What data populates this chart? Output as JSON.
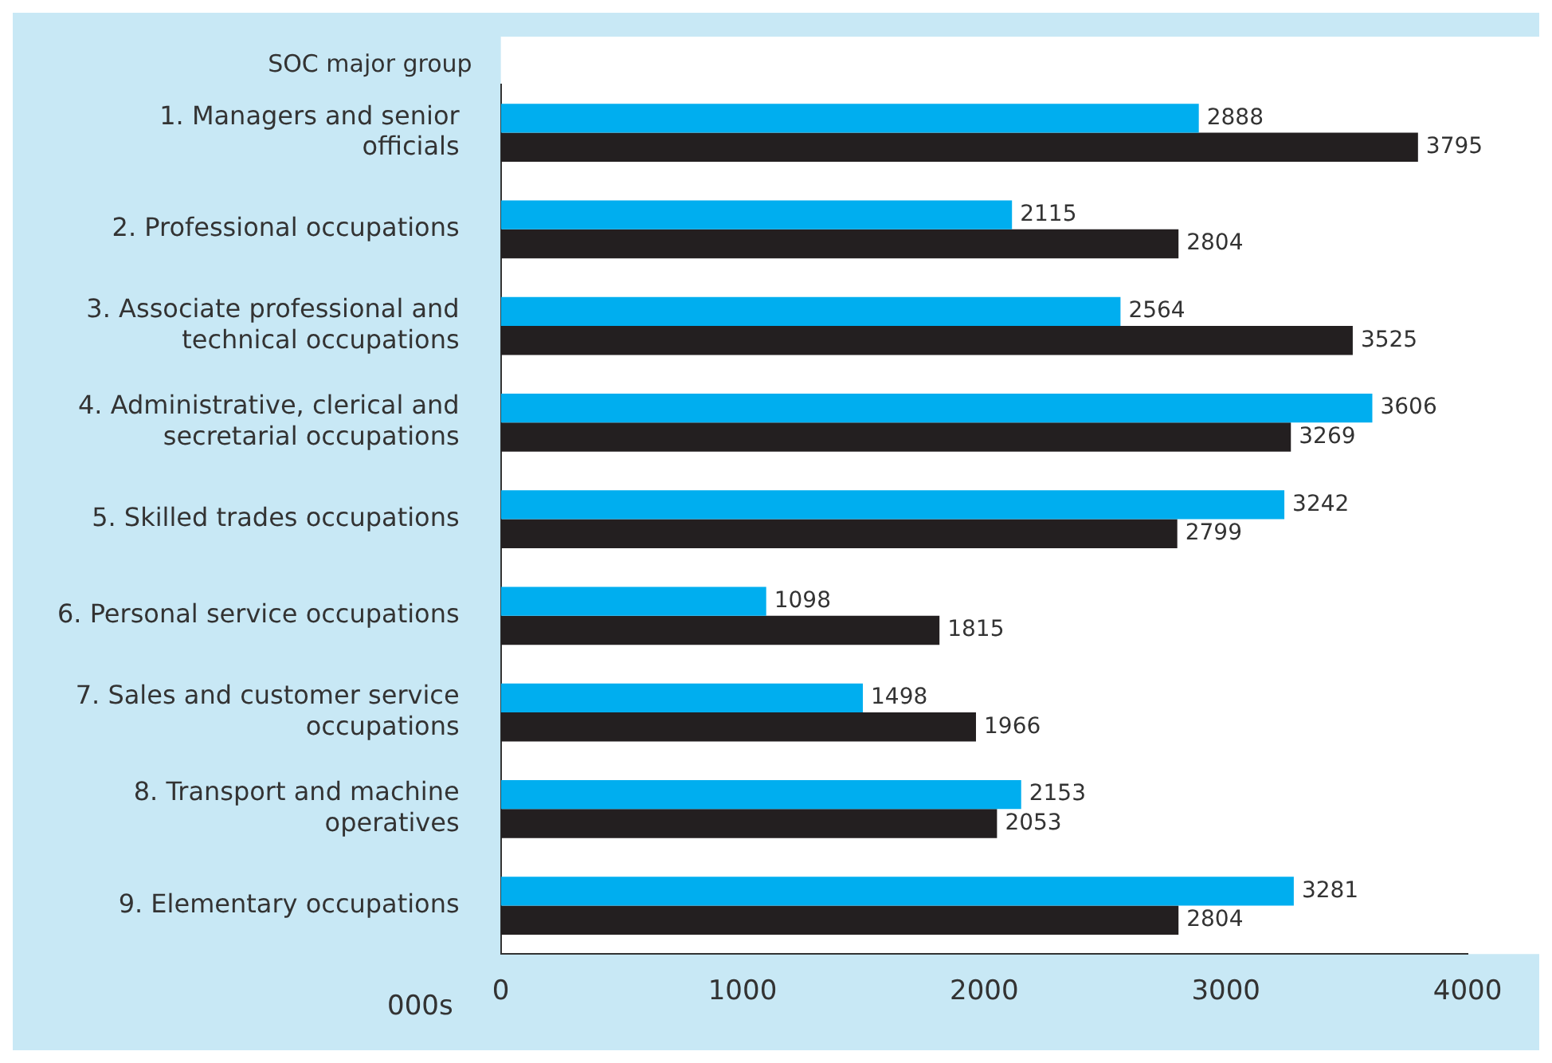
{
  "chart_data": {
    "type": "bar",
    "orientation": "horizontal",
    "ylabel": "SOC major group",
    "xlabel": "000s",
    "categories": [
      "1. Managers and senior officials",
      "2. Professional occupations",
      "3. Associate professional and technical occupations",
      "4. Administrative, clerical and secretarial occupations",
      "5. Skilled trades occupations",
      "6. Personal service occupations",
      "7. Sales and customer service occupations",
      "8. Transport and machine operatives",
      "9. Elementary occupations"
    ],
    "series": [
      {
        "color": "#00aeef",
        "values": [
          2888,
          2115,
          2564,
          3606,
          3242,
          1098,
          1498,
          2153,
          3281
        ]
      },
      {
        "color": "#231f20",
        "values": [
          3795,
          2804,
          3525,
          3269,
          2799,
          1815,
          1966,
          2053,
          2804
        ]
      }
    ],
    "xlim": [
      0,
      4000
    ],
    "xticks": [
      0,
      1000,
      2000,
      3000,
      4000
    ],
    "grid": false,
    "legend": false,
    "data_labels": true
  }
}
